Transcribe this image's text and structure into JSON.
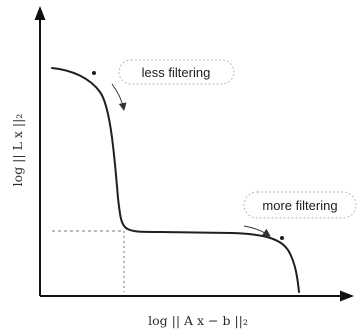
{
  "figure": {
    "x_axis_label": "log || A x − b ||₂",
    "y_axis_label": "log || L x ||₂"
  },
  "callouts": {
    "less_filtering": "less filtering",
    "more_filtering": "more filtering"
  },
  "colors": {
    "curve": "#1f1f1f",
    "axis": "#111111",
    "guide": "#777777",
    "callout_border": "#b9b9b9",
    "arrow": "#333333"
  }
}
